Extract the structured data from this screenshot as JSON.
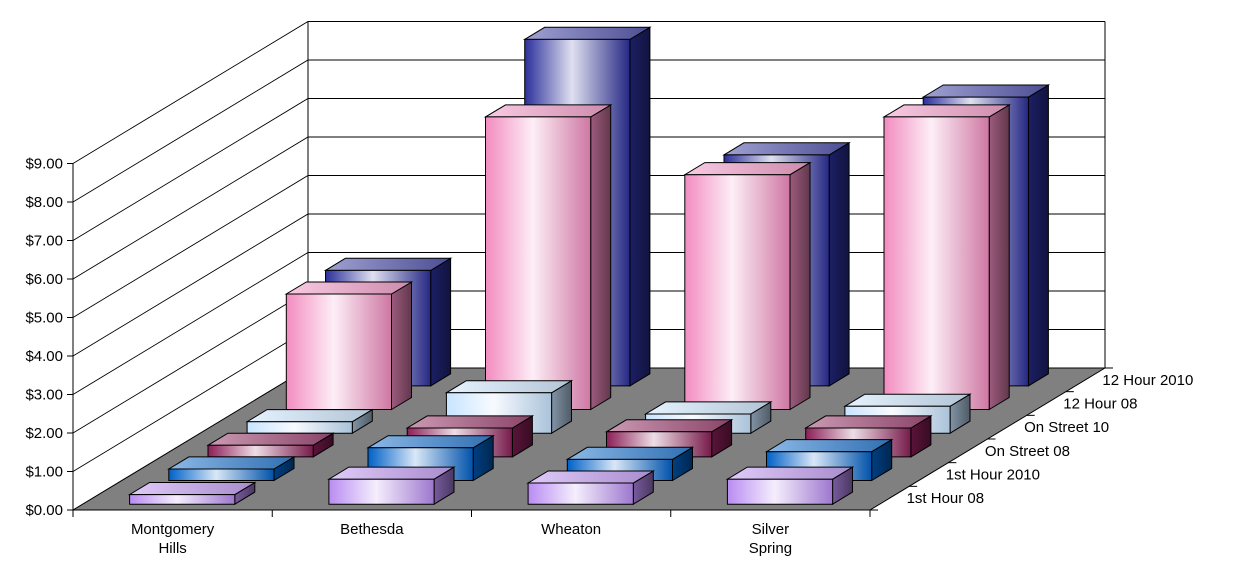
{
  "chart_data": {
    "type": "bar",
    "variant": "3d-column",
    "categories": [
      [
        "Montgomery",
        "Hills"
      ],
      [
        "Bethesda"
      ],
      [
        "Wheaton"
      ],
      [
        "Silver",
        "Spring"
      ]
    ],
    "ytick_labels": [
      "$0.00",
      "$1.00",
      "$2.00",
      "$3.00",
      "$4.00",
      "$5.00",
      "$6.00",
      "$7.00",
      "$8.00",
      "$9.00"
    ],
    "ylim": [
      0,
      9
    ],
    "grid": true,
    "series": [
      {
        "name": "1st Hour 08",
        "values": [
          0.25,
          0.65,
          0.55,
          0.65
        ],
        "color": "#b98cf2"
      },
      {
        "name": "1st Hour 2010",
        "values": [
          0.3,
          0.85,
          0.55,
          0.75
        ],
        "color": "#0061c8"
      },
      {
        "name": "On Street 08",
        "values": [
          0.3,
          0.75,
          0.65,
          0.75
        ],
        "color": "#8b1f57"
      },
      {
        "name": "On Street 10",
        "values": [
          0.3,
          1.05,
          0.5,
          0.7
        ],
        "color": "#c8e4ff"
      },
      {
        "name": "12 Hour 08",
        "values": [
          3.0,
          7.6,
          6.1,
          7.6
        ],
        "color": "#f28cc0"
      },
      {
        "name": "12 Hour 2010",
        "values": [
          3.0,
          9.0,
          6.0,
          7.5
        ],
        "color": "#2b2f9a"
      }
    ],
    "floor_color": "#808080"
  }
}
